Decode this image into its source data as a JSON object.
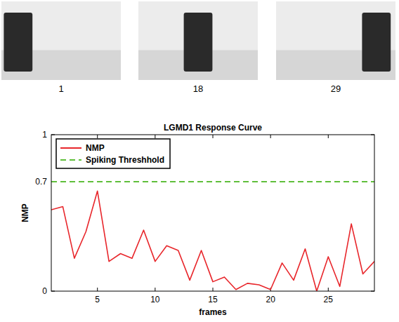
{
  "chart_data": {
    "type": "line",
    "title": "LGMD1 Response Curve",
    "x_label": "frames",
    "y_label": "NMP",
    "x": [
      1,
      2,
      3,
      4,
      5,
      6,
      7,
      8,
      9,
      10,
      11,
      12,
      13,
      14,
      15,
      16,
      17,
      18,
      19,
      20,
      21,
      22,
      23,
      24,
      25,
      26,
      27,
      28,
      29
    ],
    "series": [
      {
        "name": "NMP",
        "color": "#e8262b",
        "line_style": "solid",
        "values": [
          0.52,
          0.54,
          0.21,
          0.38,
          0.64,
          0.19,
          0.24,
          0.21,
          0.39,
          0.19,
          0.29,
          0.26,
          0.07,
          0.26,
          0.06,
          0.09,
          0.01,
          0.05,
          0.04,
          0.01,
          0.18,
          0.07,
          0.27,
          0.0,
          0.22,
          0.03,
          0.43,
          0.11,
          0.19
        ]
      }
    ],
    "threshold": {
      "name": "Spiking Threshhold",
      "value": 0.7,
      "color": "#5fbf3a",
      "line_style": "dashed"
    },
    "xlim": [
      1,
      29
    ],
    "xticks": [
      5,
      10,
      15,
      20,
      25
    ],
    "ylim": [
      0,
      1
    ],
    "yticks": [
      0,
      0.7,
      1
    ],
    "grid": false,
    "legend": "upper left"
  },
  "photos": {
    "labels": [
      "1",
      "18",
      "29"
    ]
  }
}
